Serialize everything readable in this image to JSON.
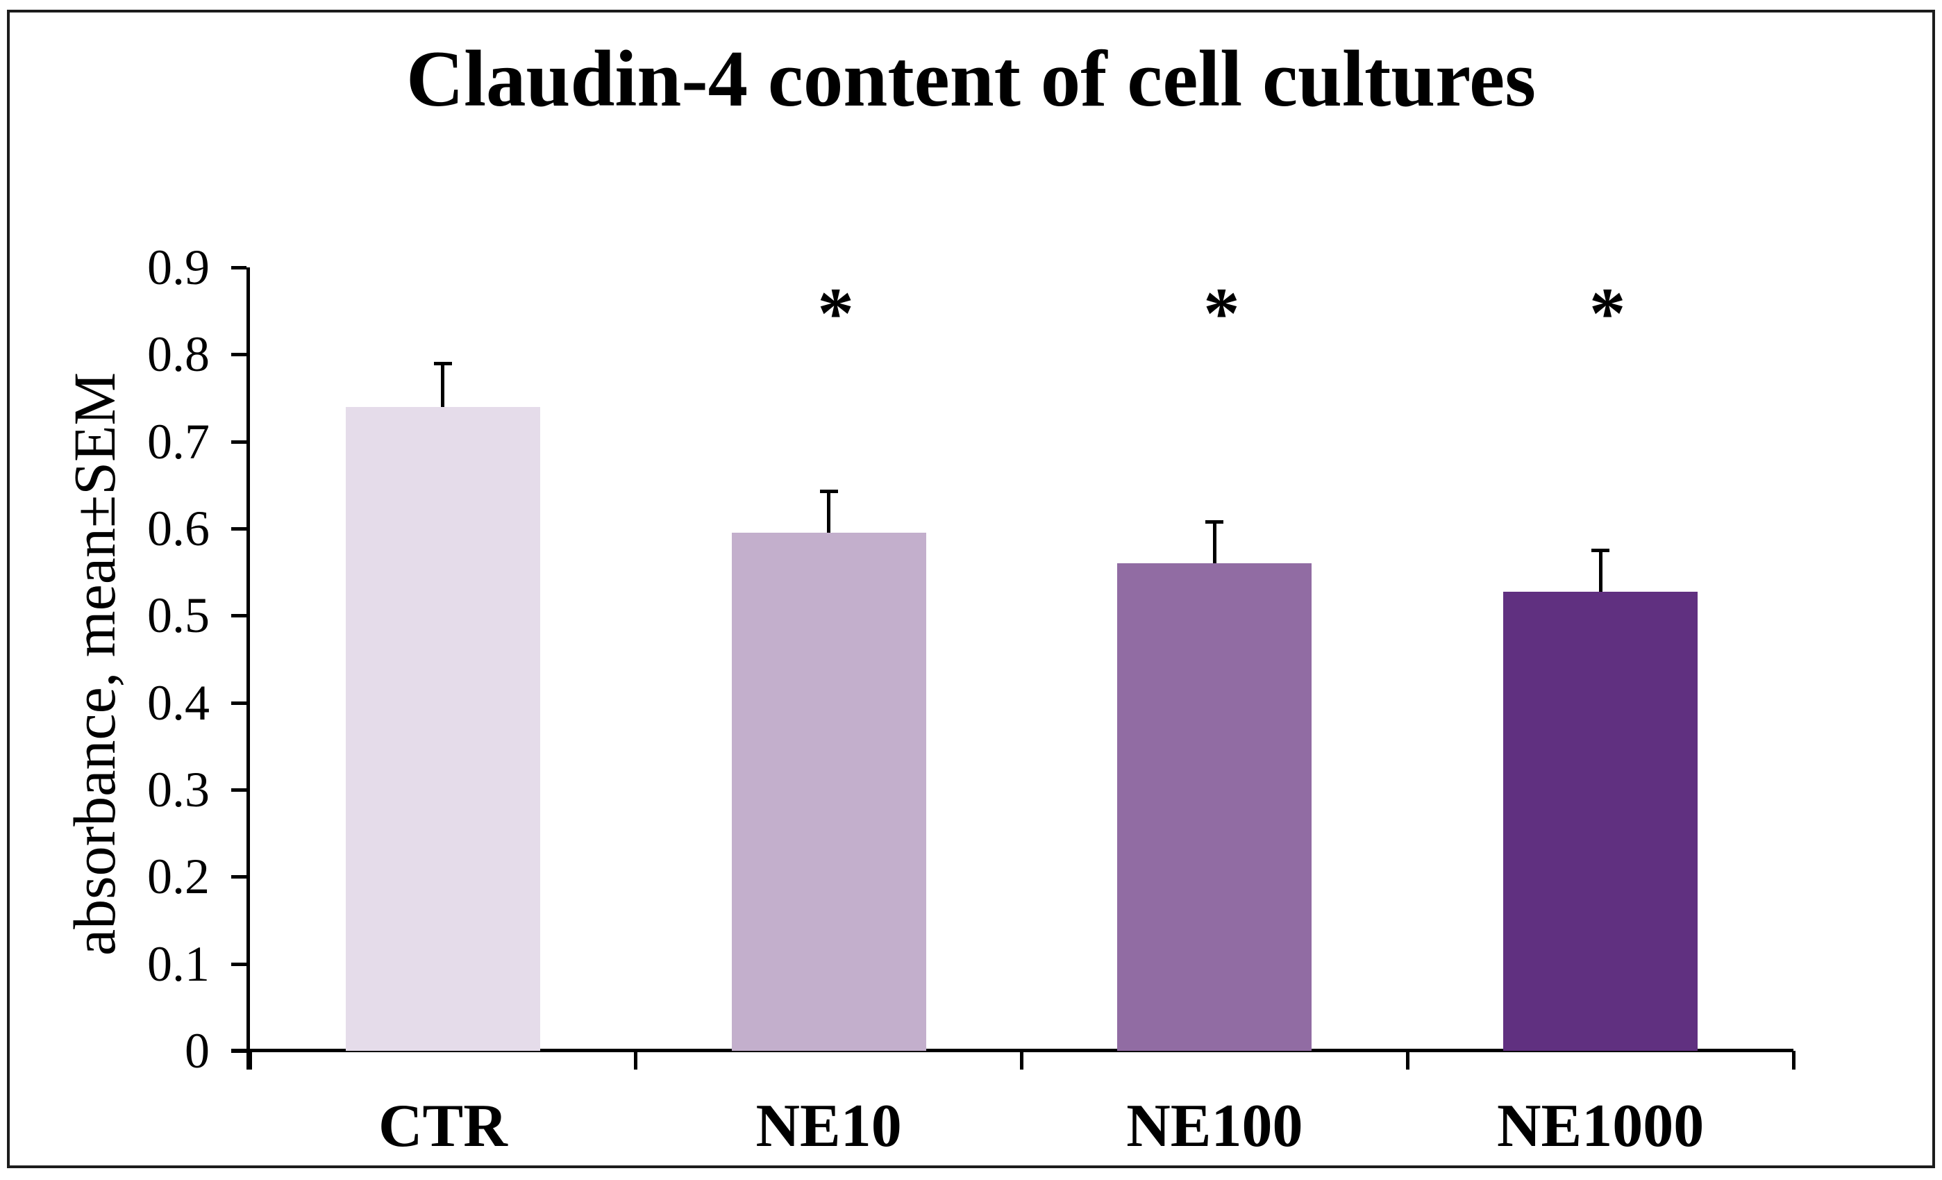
{
  "figure": {
    "border_color": "#1c1c1c",
    "background": "#ffffff",
    "text_color": "#000000"
  },
  "chart_data": {
    "type": "bar",
    "title": "Claudin-4 content of cell cultures",
    "xlabel": "",
    "ylabel": "absorbance, mean±SEM",
    "categories": [
      "CTR",
      "NE10",
      "NE100",
      "NE1000"
    ],
    "values": [
      0.74,
      0.595,
      0.56,
      0.527
    ],
    "sem": [
      0.05,
      0.048,
      0.048,
      0.048
    ],
    "error_bars": "upper SEM whiskers with caps",
    "significance": [
      "",
      "*",
      "*",
      "*"
    ],
    "bar_colors": [
      "#e5dcea",
      "#c3afcc",
      "#916ca3",
      "#603080"
    ],
    "axis_color": "#000000",
    "ylim": [
      0,
      0.9
    ],
    "yticks": [
      "0",
      "0.1",
      "0.2",
      "0.3",
      "0.4",
      "0.5",
      "0.6",
      "0.7",
      "0.8",
      "0.9"
    ],
    "grid": false,
    "legend": "none"
  }
}
